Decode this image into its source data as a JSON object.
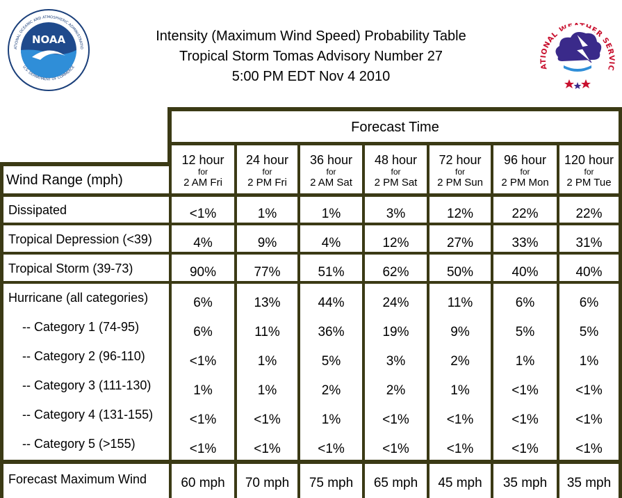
{
  "header": {
    "title_line1": "Intensity (Maximum Wind Speed) Probability Table",
    "title_line2": "Tropical Storm Tomas Advisory Number 27",
    "title_line3": "5:00 PM EDT Nov 4 2010"
  },
  "logos": {
    "noaa_text": "NOAA",
    "noaa_ring_text": "NATIONAL OCEANIC AND ATMOSPHERIC ADMINISTRATION",
    "noaa_ring_text_bottom": "U.S. DEPARTMENT OF COMMERCE",
    "nws_ring_text": "NATIONAL WEATHER SERVICE"
  },
  "table": {
    "forecast_time_label": "Forecast Time",
    "wind_range_label": "Wind Range (mph)",
    "columns": [
      {
        "hour": "12 hour",
        "for": "for",
        "date": "2 AM Fri"
      },
      {
        "hour": "24 hour",
        "for": "for",
        "date": "2 PM Fri"
      },
      {
        "hour": "36 hour",
        "for": "for",
        "date": "2 AM Sat"
      },
      {
        "hour": "48 hour",
        "for": "for",
        "date": "2 PM Sat"
      },
      {
        "hour": "72 hour",
        "for": "for",
        "date": "2 PM Sun"
      },
      {
        "hour": "96 hour",
        "for": "for",
        "date": "2 PM Mon"
      },
      {
        "hour": "120 hour",
        "for": "for",
        "date": "2 PM Tue"
      }
    ],
    "rows": {
      "dissipated": {
        "label": "Dissipated",
        "values": [
          "<1%",
          "1%",
          "1%",
          "3%",
          "12%",
          "22%",
          "22%"
        ]
      },
      "td": {
        "label": "Tropical Depression (<39)",
        "values": [
          "4%",
          "9%",
          "4%",
          "12%",
          "27%",
          "33%",
          "31%"
        ]
      },
      "ts": {
        "label": "Tropical Storm (39-73)",
        "values": [
          "90%",
          "77%",
          "51%",
          "62%",
          "50%",
          "40%",
          "40%"
        ]
      },
      "hurricane": [
        {
          "label": "Hurricane (all categories)",
          "values": [
            "6%",
            "13%",
            "44%",
            "24%",
            "11%",
            "6%",
            "6%"
          ]
        },
        {
          "label": "-- Category 1 (74-95)",
          "values": [
            "6%",
            "11%",
            "36%",
            "19%",
            "9%",
            "5%",
            "5%"
          ]
        },
        {
          "label": "-- Category 2 (96-110)",
          "values": [
            "<1%",
            "1%",
            "5%",
            "3%",
            "2%",
            "1%",
            "1%"
          ]
        },
        {
          "label": "-- Category 3 (111-130)",
          "values": [
            "1%",
            "1%",
            "2%",
            "2%",
            "1%",
            "<1%",
            "<1%"
          ]
        },
        {
          "label": "-- Category 4 (131-155)",
          "values": [
            "<1%",
            "<1%",
            "1%",
            "<1%",
            "<1%",
            "<1%",
            "<1%"
          ]
        },
        {
          "label": "-- Category 5 (>155)",
          "values": [
            "<1%",
            "<1%",
            "<1%",
            "<1%",
            "<1%",
            "<1%",
            "<1%"
          ]
        }
      ],
      "max_wind": {
        "label": "Forecast Maximum Wind",
        "values": [
          "60 mph",
          "70 mph",
          "75 mph",
          "65 mph",
          "45 mph",
          "35 mph",
          "35 mph"
        ]
      }
    }
  }
}
